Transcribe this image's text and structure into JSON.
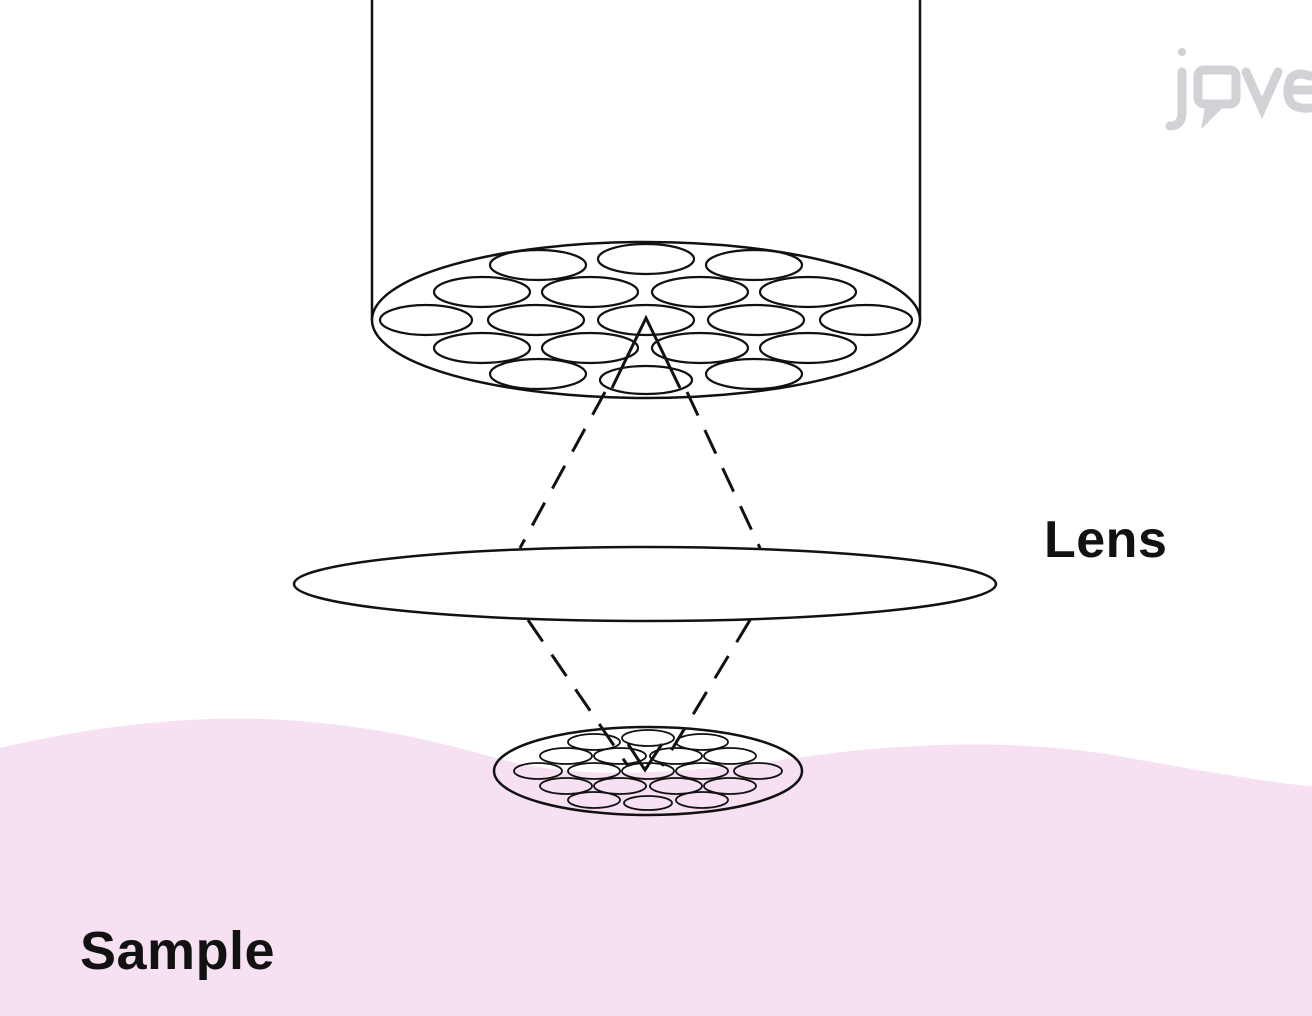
{
  "labels": {
    "lens": "Lens",
    "sample": "Sample"
  },
  "watermark": {
    "text": "jove",
    "icon": "jove-logo-icon"
  },
  "colors": {
    "sample_fill": "#f6e0f1",
    "stroke": "#111111",
    "watermark": "#c9c9cf"
  },
  "icons": {
    "fiber_bundle": "fiber-bundle-icon",
    "lens": "lens-icon",
    "focused_spot": "focused-spot-icon"
  }
}
